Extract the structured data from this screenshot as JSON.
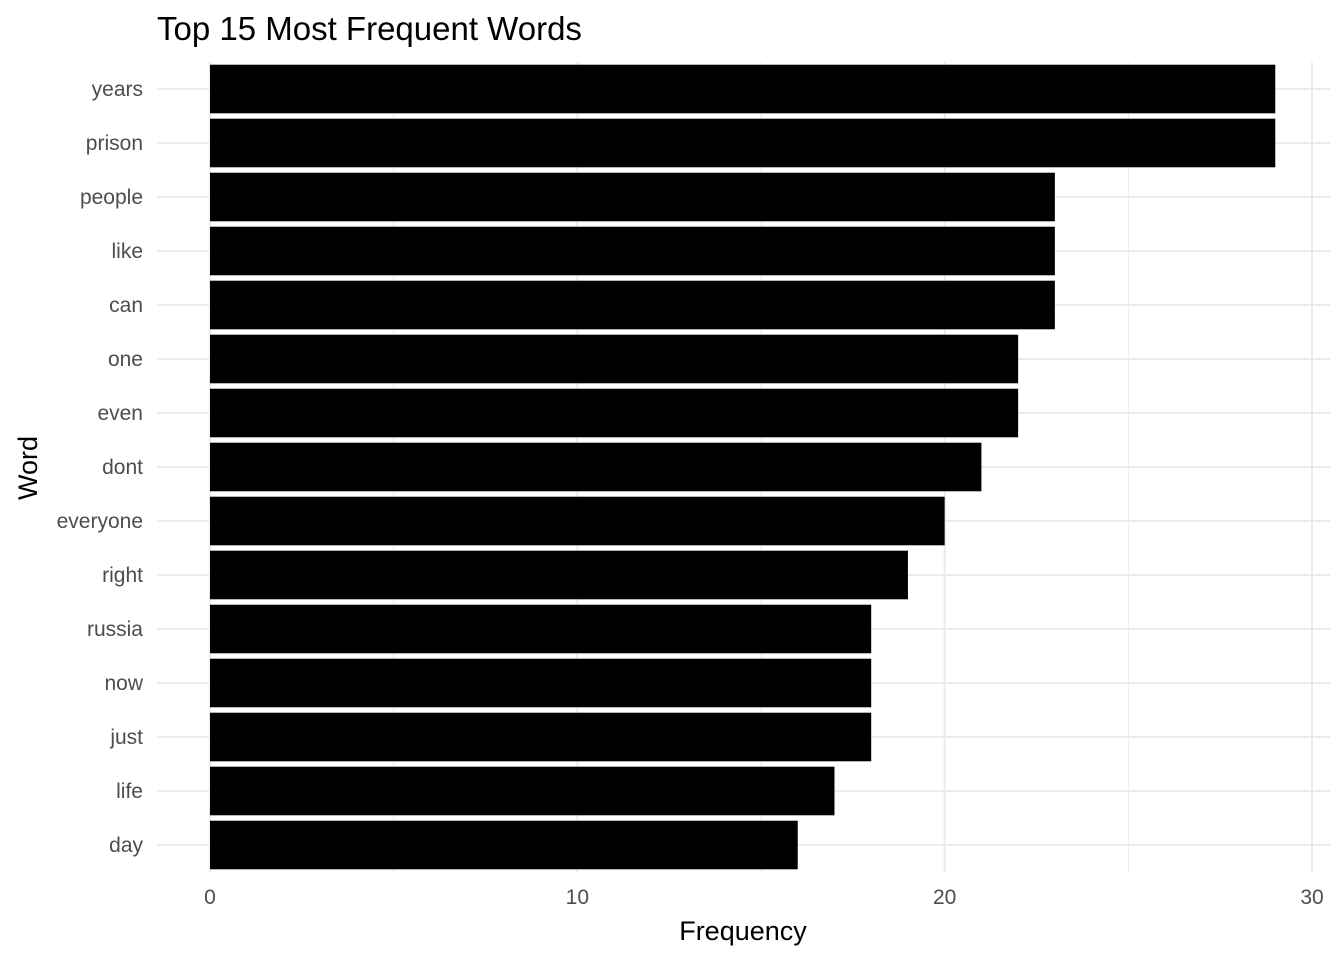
{
  "chart_data": {
    "type": "bar",
    "orientation": "horizontal",
    "title": "Top 15 Most Frequent Words",
    "xlabel": "Frequency",
    "ylabel": "Word",
    "categories": [
      "years",
      "prison",
      "people",
      "like",
      "can",
      "one",
      "even",
      "dont",
      "everyone",
      "right",
      "russia",
      "now",
      "just",
      "life",
      "day"
    ],
    "values": [
      29,
      29,
      23,
      23,
      23,
      22,
      22,
      21,
      20,
      19,
      18,
      18,
      18,
      17,
      16
    ],
    "xlim": [
      0,
      30
    ],
    "x_ticks": [
      0,
      10,
      20,
      30
    ],
    "grid": true,
    "bar_color": "#000000",
    "grid_color": "#ebebeb",
    "legend": "none"
  }
}
